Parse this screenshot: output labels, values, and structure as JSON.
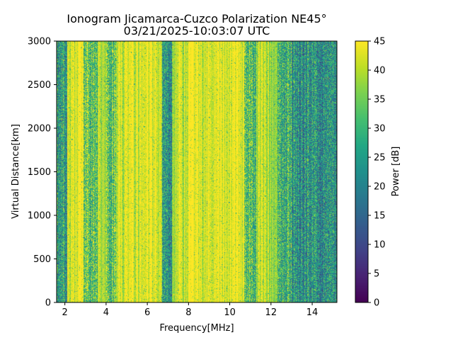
{
  "chart_data": {
    "type": "heatmap",
    "title": "Ionogram Jicamarca-Cuzco Polarization NE45°",
    "subtitle": "03/21/2025-10:03:07 UTC",
    "xlabel": "Frequency[MHz]",
    "ylabel": "Virtual Distance[km]",
    "colorbar_label": "Power [dB]",
    "colormap": "viridis",
    "xlim": [
      1.6,
      15.2
    ],
    "ylim": [
      0,
      3000
    ],
    "clim": [
      0,
      45
    ],
    "x_ticks": [
      2,
      4,
      6,
      8,
      10,
      12,
      14
    ],
    "y_ticks": [
      0,
      500,
      1000,
      1500,
      2000,
      2500,
      3000
    ],
    "colorbar_ticks": [
      0,
      5,
      10,
      15,
      20,
      25,
      30,
      35,
      40,
      45
    ],
    "grid": false,
    "frequency_bands": [
      {
        "from": 1.6,
        "to": 2.1,
        "level": 25
      },
      {
        "from": 2.1,
        "to": 2.9,
        "level": 43
      },
      {
        "from": 2.9,
        "to": 3.6,
        "level": 33
      },
      {
        "from": 3.6,
        "to": 4.0,
        "level": 40
      },
      {
        "from": 4.0,
        "to": 4.5,
        "level": 32
      },
      {
        "from": 4.5,
        "to": 6.7,
        "level": 43
      },
      {
        "from": 6.7,
        "to": 7.2,
        "level": 22
      },
      {
        "from": 7.2,
        "to": 7.9,
        "level": 41
      },
      {
        "from": 7.9,
        "to": 10.7,
        "level": 44
      },
      {
        "from": 10.7,
        "to": 11.3,
        "level": 33
      },
      {
        "from": 11.3,
        "to": 12.3,
        "level": 40
      },
      {
        "from": 12.3,
        "to": 13.0,
        "level": 30
      },
      {
        "from": 13.0,
        "to": 15.2,
        "level": 24
      }
    ]
  }
}
